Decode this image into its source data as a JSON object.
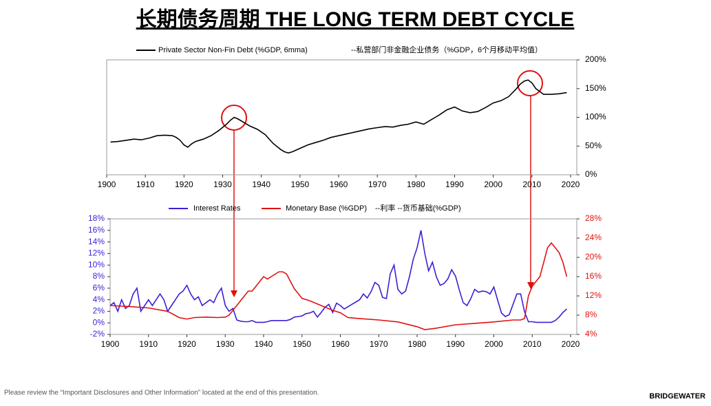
{
  "title": "长期债务周期 THE LONG TERM DEBT CYCLE",
  "footer": "Please review the “Important Disclosures and Other Information” located at the end of this presentation.",
  "brand": "BRIDGEWATER",
  "chart_data": [
    {
      "type": "line",
      "legend_cn": "--私营部门非金融企业债务（%GDP，6个月移动平均值）",
      "xlim": [
        1900,
        2020
      ],
      "xticks": [
        1900,
        1910,
        1920,
        1930,
        1940,
        1950,
        1960,
        1970,
        1980,
        1990,
        2000,
        2010,
        2020
      ],
      "ylim": [
        0,
        200
      ],
      "yticks": [
        {
          "value": 0,
          "label": "0%"
        },
        {
          "value": 50,
          "label": "50%"
        },
        {
          "value": 100,
          "label": "100%"
        },
        {
          "value": 150,
          "label": "150%"
        },
        {
          "value": 200,
          "label": "200%"
        }
      ],
      "series": [
        {
          "name": "Private Sector Non-Fin Debt (%GDP, 6mma)",
          "color": "#000000",
          "x": [
            1901,
            1903,
            1905,
            1907,
            1909,
            1911,
            1913,
            1915,
            1917,
            1918,
            1919,
            1920,
            1921,
            1922,
            1923,
            1925,
            1927,
            1929,
            1931,
            1932,
            1933,
            1934,
            1935,
            1937,
            1939,
            1941,
            1943,
            1945,
            1946,
            1947,
            1948,
            1950,
            1952,
            1954,
            1956,
            1958,
            1960,
            1962,
            1964,
            1966,
            1968,
            1970,
            1972,
            1974,
            1976,
            1978,
            1980,
            1982,
            1984,
            1986,
            1988,
            1990,
            1992,
            1994,
            1996,
            1998,
            2000,
            2002,
            2004,
            2006,
            2007,
            2008,
            2009,
            2010,
            2011,
            2012,
            2013,
            2015,
            2017,
            2019
          ],
          "values": [
            57,
            58,
            60,
            62,
            61,
            64,
            68,
            69,
            68,
            65,
            60,
            52,
            48,
            54,
            58,
            62,
            68,
            77,
            88,
            95,
            100,
            97,
            93,
            85,
            79,
            70,
            55,
            44,
            40,
            38,
            40,
            46,
            52,
            56,
            60,
            65,
            68,
            71,
            74,
            77,
            80,
            82,
            84,
            83,
            86,
            88,
            92,
            88,
            96,
            104,
            113,
            118,
            111,
            108,
            110,
            117,
            125,
            129,
            136,
            150,
            158,
            163,
            165,
            160,
            150,
            145,
            140,
            140,
            141,
            143
          ]
        }
      ]
    },
    {
      "type": "line",
      "legend_cn": "--利率 --货币基础(%GDP)",
      "xlim": [
        1900,
        2020
      ],
      "xticks": [
        1900,
        1910,
        1920,
        1930,
        1940,
        1950,
        1960,
        1970,
        1980,
        1990,
        2000,
        2010,
        2020
      ],
      "ylim": [
        -2,
        18
      ],
      "yticks": [
        {
          "value": -2,
          "label": "-2%"
        },
        {
          "value": 0,
          "label": "0%"
        },
        {
          "value": 2,
          "label": "2%"
        },
        {
          "value": 4,
          "label": "4%"
        },
        {
          "value": 6,
          "label": "6%"
        },
        {
          "value": 8,
          "label": "8%"
        },
        {
          "value": 10,
          "label": "10%"
        },
        {
          "value": 12,
          "label": "12%"
        },
        {
          "value": 14,
          "label": "14%"
        },
        {
          "value": 16,
          "label": "16%"
        },
        {
          "value": 18,
          "label": "18%"
        }
      ],
      "y2lim": [
        4,
        28
      ],
      "y2ticks": [
        {
          "value": 4,
          "label": "4%"
        },
        {
          "value": 8,
          "label": "8%"
        },
        {
          "value": 12,
          "label": "12%"
        },
        {
          "value": 16,
          "label": "16%"
        },
        {
          "value": 20,
          "label": "20%"
        },
        {
          "value": 24,
          "label": "24%"
        },
        {
          "value": 28,
          "label": "28%"
        }
      ],
      "series": [
        {
          "name": "Interest Rates",
          "color": "#3a1fd6",
          "x": [
            1900,
            1901,
            1902,
            1903,
            1904,
            1905,
            1906,
            1907,
            1908,
            1909,
            1910,
            1911,
            1912,
            1913,
            1914,
            1915,
            1916,
            1917,
            1918,
            1919,
            1920,
            1921,
            1922,
            1923,
            1924,
            1925,
            1926,
            1927,
            1928,
            1929,
            1930,
            1931,
            1932,
            1933,
            1934,
            1935,
            1936,
            1937,
            1938,
            1939,
            1940,
            1941,
            1942,
            1943,
            1944,
            1945,
            1946,
            1947,
            1948,
            1949,
            1950,
            1951,
            1952,
            1953,
            1954,
            1955,
            1956,
            1957,
            1958,
            1959,
            1960,
            1961,
            1962,
            1963,
            1964,
            1965,
            1966,
            1967,
            1968,
            1969,
            1970,
            1971,
            1972,
            1973,
            1974,
            1975,
            1976,
            1977,
            1978,
            1979,
            1980,
            1981,
            1982,
            1983,
            1984,
            1985,
            1986,
            1987,
            1988,
            1989,
            1990,
            1991,
            1992,
            1993,
            1994,
            1995,
            1996,
            1997,
            1998,
            1999,
            2000,
            2001,
            2002,
            2003,
            2004,
            2005,
            2006,
            2007,
            2008,
            2009,
            2010,
            2011,
            2012,
            2013,
            2014,
            2015,
            2016,
            2017,
            2018,
            2019
          ],
          "values": [
            3,
            3.5,
            2,
            4,
            2.5,
            3,
            5,
            6,
            2,
            3,
            4,
            3,
            4,
            5,
            4,
            2,
            3,
            4,
            5,
            5.5,
            6.5,
            5,
            4,
            4.5,
            3,
            3.5,
            4,
            3.5,
            5,
            6,
            3,
            2,
            2.5,
            0.5,
            0.3,
            0.2,
            0.2,
            0.4,
            0.1,
            0.1,
            0.1,
            0.2,
            0.4,
            0.4,
            0.4,
            0.4,
            0.4,
            0.6,
            1,
            1.1,
            1.2,
            1.6,
            1.7,
            2,
            1,
            1.8,
            2.7,
            3.2,
            1.8,
            3.4,
            3,
            2.4,
            2.8,
            3.2,
            3.6,
            4,
            5,
            4.3,
            5.4,
            7,
            6.5,
            4.4,
            4.2,
            8.5,
            10,
            5.8,
            5,
            5.5,
            8,
            11,
            13,
            16,
            12,
            9,
            10.5,
            8,
            6.5,
            6.8,
            7.6,
            9.2,
            8.1,
            5.7,
            3.5,
            3,
            4.2,
            5.8,
            5.3,
            5.5,
            5.4,
            5,
            6.2,
            3.9,
            1.7,
            1.1,
            1.4,
            3.2,
            5,
            5,
            1.9,
            0.2,
            0.2,
            0.1,
            0.1,
            0.1,
            0.1,
            0.1,
            0.4,
            1,
            1.8,
            2.4
          ]
        },
        {
          "name": "Monetary Base (%GDP)",
          "color": "#e01010",
          "axis": "y2",
          "x": [
            1900,
            1905,
            1910,
            1915,
            1918,
            1920,
            1922,
            1925,
            1928,
            1930,
            1931,
            1932,
            1933,
            1934,
            1935,
            1936,
            1937,
            1938,
            1939,
            1940,
            1941,
            1942,
            1943,
            1944,
            1945,
            1946,
            1947,
            1948,
            1949,
            1950,
            1952,
            1955,
            1958,
            1960,
            1962,
            1965,
            1970,
            1975,
            1980,
            1982,
            1985,
            1990,
            1995,
            2000,
            2005,
            2007,
            2008,
            2009,
            2010,
            2011,
            2012,
            2013,
            2014,
            2015,
            2016,
            2017,
            2018,
            2019
          ],
          "values": [
            10,
            9.8,
            9.5,
            8.8,
            7.5,
            7.2,
            7.5,
            7.6,
            7.5,
            7.6,
            8,
            9,
            10,
            11,
            12,
            13,
            13,
            14,
            15,
            16,
            15.5,
            16,
            16.5,
            17,
            17,
            16.5,
            15,
            13.5,
            12.5,
            11.5,
            11,
            10,
            9,
            8.5,
            7.5,
            7.3,
            7,
            6.6,
            5.6,
            5,
            5.3,
            6,
            6.3,
            6.6,
            7,
            7,
            7.3,
            12,
            14,
            15,
            16,
            19,
            22,
            23,
            22,
            21,
            19,
            16
          ]
        }
      ]
    }
  ]
}
